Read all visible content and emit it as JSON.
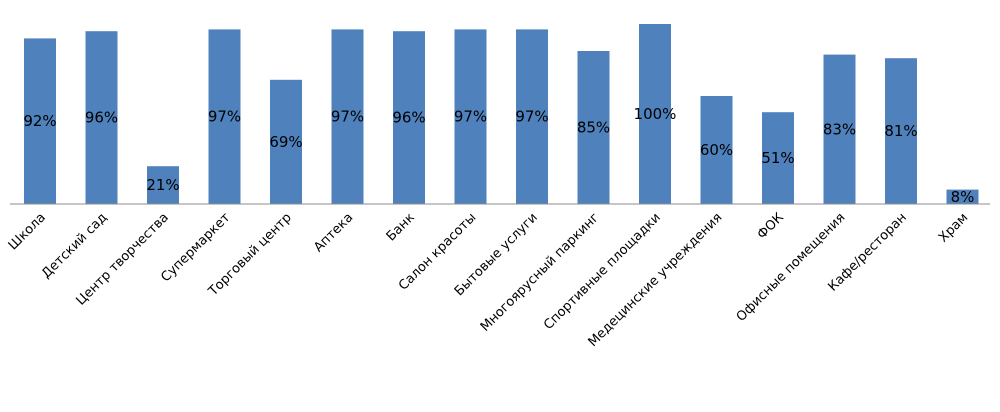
{
  "chart_data": {
    "type": "bar",
    "categories": [
      "Школа",
      "Детский сад",
      "Центр творчества",
      "Супермаркет",
      "Торговый центр",
      "Аптека",
      "Банк",
      "Салон красоты",
      "Бытовые услуги",
      "Многоярусный паркинг",
      "Спортивные площадки",
      "Медецинские учреждения",
      "ФОК",
      "Офисные помещения",
      "Кафе/ресторан",
      "Храм"
    ],
    "values": [
      92,
      96,
      21,
      97,
      69,
      97,
      96,
      97,
      97,
      85,
      100,
      60,
      51,
      83,
      81,
      8
    ],
    "value_labels": [
      "92%",
      "96%",
      "21%",
      "97%",
      "69%",
      "97%",
      "96%",
      "97%",
      "97%",
      "85%",
      "100%",
      "60%",
      "51%",
      "83%",
      "81%",
      "8%"
    ],
    "ylim": [
      0,
      100
    ],
    "grid": false,
    "legend": "none",
    "bar_color": "#4f81bd"
  }
}
